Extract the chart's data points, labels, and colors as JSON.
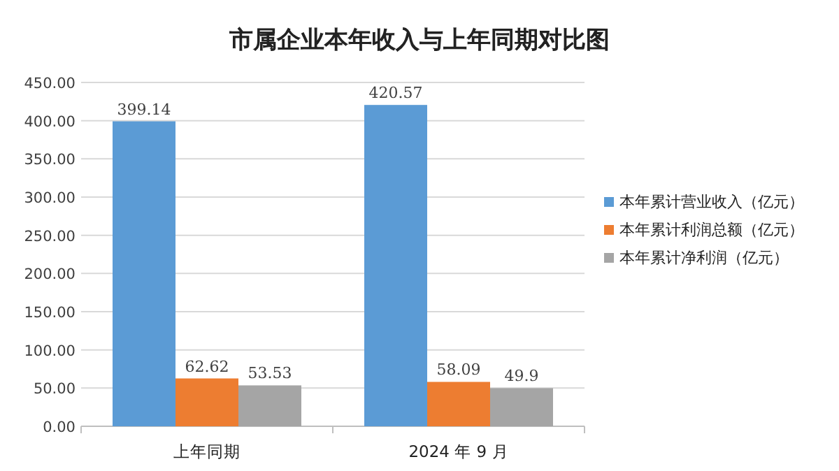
{
  "chart_data": {
    "type": "bar",
    "title": "市属企业本年收入与上年同期对比图",
    "categories": [
      "上年同期",
      "2024 年 9 月"
    ],
    "series": [
      {
        "name": "本年累计营业收入（亿元）",
        "color": "#5b9bd5",
        "values": [
          399.14,
          420.57
        ]
      },
      {
        "name": "本年累计利润总额（亿元）",
        "color": "#ed7d31",
        "values": [
          62.62,
          58.09
        ]
      },
      {
        "name": "本年累计净利润（亿元）",
        "color": "#a5a5a5",
        "values": [
          53.53,
          49.9
        ]
      }
    ],
    "ylim": [
      0,
      450
    ],
    "yticks": [
      {
        "value": 0,
        "label": "0.00"
      },
      {
        "value": 50,
        "label": "50.00"
      },
      {
        "value": 100,
        "label": "100.00"
      },
      {
        "value": 150,
        "label": "150.00"
      },
      {
        "value": 200,
        "label": "200.00"
      },
      {
        "value": 250,
        "label": "250.00"
      },
      {
        "value": 300,
        "label": "300.00"
      },
      {
        "value": 350,
        "label": "350.00"
      },
      {
        "value": 400,
        "label": "400.00"
      },
      {
        "value": 450,
        "label": "450.00"
      }
    ],
    "grid": "y",
    "legend": "right",
    "data_labels": true
  }
}
